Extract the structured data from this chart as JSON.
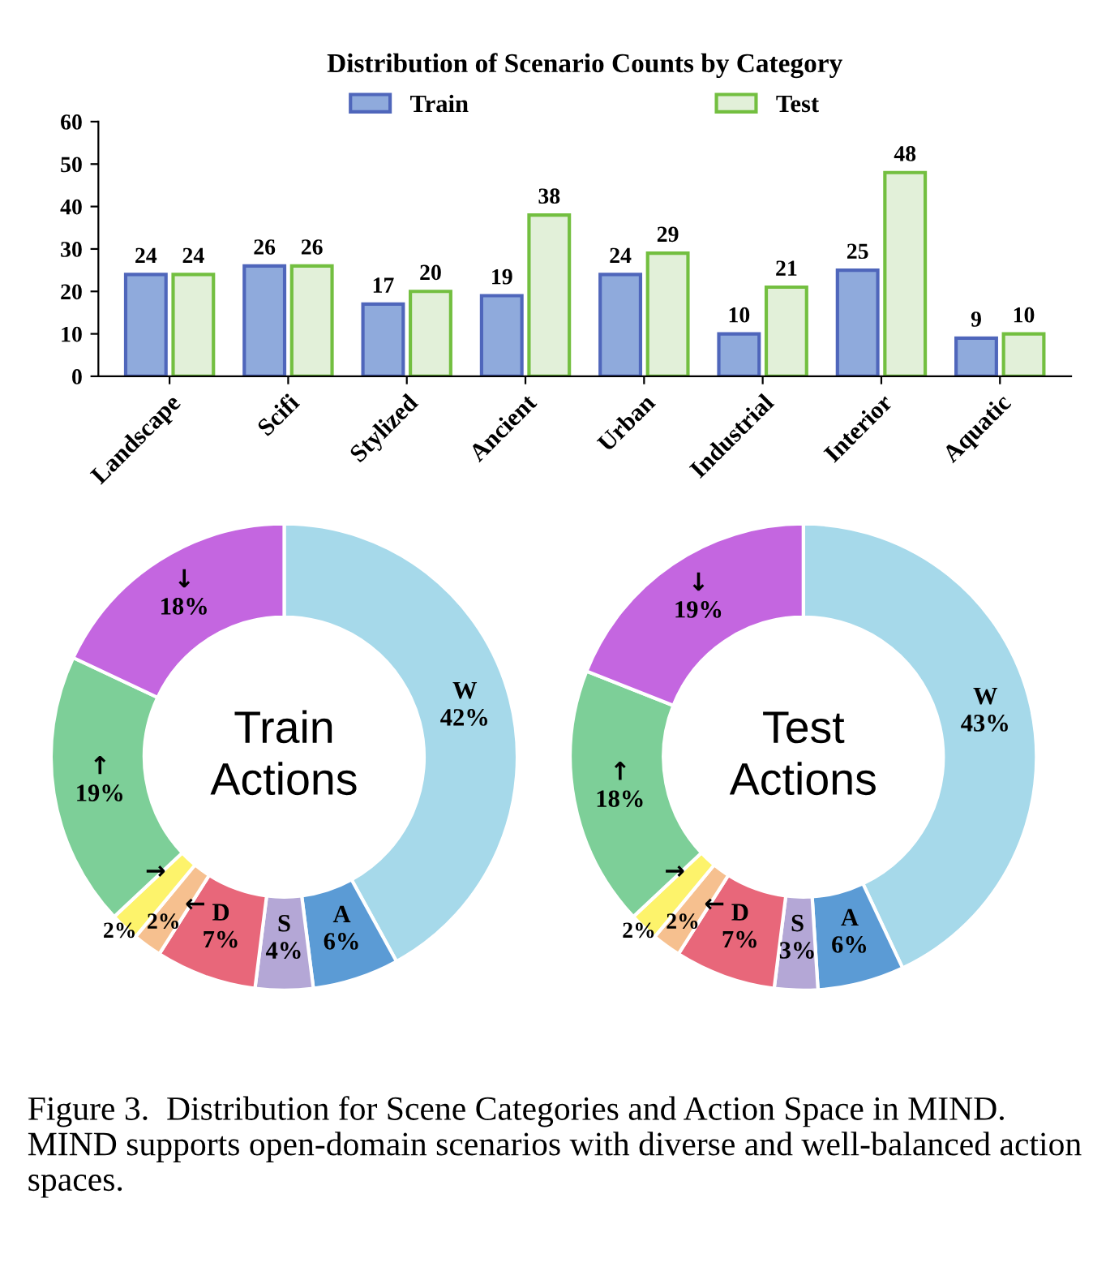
{
  "chart_data": [
    {
      "type": "bar",
      "title": "Distribution of Scenario Counts by Category",
      "categories": [
        "Landscape",
        "Scifi",
        "Stylized",
        "Ancient",
        "Urban",
        "Industrial",
        "Interior",
        "Aquatic"
      ],
      "series": [
        {
          "name": "Train",
          "color": "#8faadc",
          "values": [
            24,
            26,
            17,
            19,
            24,
            10,
            25,
            9
          ]
        },
        {
          "name": "Test",
          "color": "#e2f0d9",
          "values": [
            24,
            26,
            20,
            38,
            29,
            21,
            48,
            10
          ]
        }
      ],
      "ylim": [
        0,
        60
      ],
      "yticks": [
        0,
        10,
        20,
        30,
        40,
        50,
        60
      ],
      "data_labels": true,
      "legend": "top",
      "grid": false
    },
    {
      "type": "donut",
      "title": "Train\nActions",
      "categories": [
        "W",
        "A",
        "S",
        "D",
        "←",
        "→",
        "↑",
        "↓"
      ],
      "values": [
        42,
        6,
        4,
        7,
        2,
        2,
        19,
        18
      ],
      "value_labels": [
        "42%",
        "6%",
        "4%",
        "7%",
        "2%",
        "2%",
        "19%",
        "18%"
      ],
      "colors": [
        "#a6d9ea",
        "#5b9bd5",
        "#b4a7d6",
        "#e8677a",
        "#f6c08f",
        "#fdf36b",
        "#7dcf98",
        "#c466e0"
      ]
    },
    {
      "type": "donut",
      "title": "Test\nActions",
      "categories": [
        "W",
        "A",
        "S",
        "D",
        "←",
        "→",
        "↑",
        "↓"
      ],
      "values": [
        43,
        6,
        3,
        7,
        2,
        2,
        18,
        19
      ],
      "value_labels": [
        "43%",
        "6%",
        "3%",
        "7%",
        "2%",
        "2%",
        "18%",
        "19%"
      ],
      "colors": [
        "#a6d9ea",
        "#5b9bd5",
        "#b4a7d6",
        "#e8677a",
        "#f6c08f",
        "#fdf36b",
        "#7dcf98",
        "#c466e0"
      ],
      "annotations": [
        "Figure 3.  Distribution for Scene Categories and Action Space in MIND. MIND supports open-domain scenarios with diverse and well-balanced action spaces."
      ]
    }
  ]
}
